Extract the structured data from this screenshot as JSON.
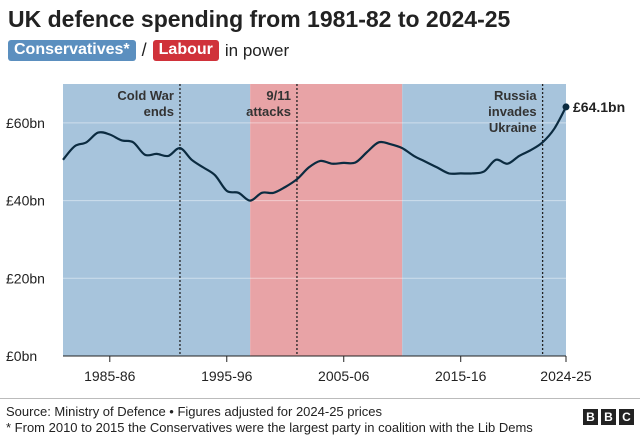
{
  "header": {
    "title": "UK defence spending from 1981-82 to 2024-25",
    "legend": {
      "conservatives_label": "Conservatives*",
      "separator": "/",
      "labour_label": "Labour",
      "suffix": "in power"
    }
  },
  "colors": {
    "conservative": "#5b8fbf",
    "conservative_shade": "#a7c4dc",
    "labour": "#d0323a",
    "labour_shade": "#e8a3a6",
    "line": "#0b2b40"
  },
  "chart_data": {
    "type": "line",
    "title": "UK defence spending from 1981-82 to 2024-25",
    "xlabel": "",
    "ylabel": "",
    "xlim": [
      1981,
      2024
    ],
    "ylim": [
      0,
      70
    ],
    "y_ticks": [
      0,
      20,
      40,
      60
    ],
    "y_tick_labels": [
      "£0bn",
      "£20bn",
      "£40bn",
      "£60bn"
    ],
    "x_ticks": [
      1985,
      1995,
      2005,
      2015,
      2024
    ],
    "x_tick_labels": [
      "1985-86",
      "1995-96",
      "2005-06",
      "2015-16",
      "2024-25"
    ],
    "grid": true,
    "periods": [
      {
        "party": "conservative",
        "start": 1981,
        "end": 1997
      },
      {
        "party": "labour",
        "start": 1997,
        "end": 2010
      },
      {
        "party": "conservative",
        "start": 2010,
        "end": 2024
      }
    ],
    "annotations": [
      {
        "x": 1991,
        "lines": [
          "Cold War",
          "ends"
        ],
        "align": "right"
      },
      {
        "x": 2001,
        "lines": [
          "9/11",
          "attacks"
        ],
        "align": "right"
      },
      {
        "x": 2022,
        "lines": [
          "Russia",
          "invades",
          "Ukraine"
        ],
        "align": "right"
      }
    ],
    "end_label": "£64.1bn",
    "series": [
      {
        "x": [
          1981,
          1982,
          1983,
          1984,
          1985,
          1986,
          1987,
          1988,
          1989,
          1990,
          1991,
          1992,
          1993,
          1994,
          1995,
          1996,
          1997,
          1998,
          1999,
          2000,
          2001,
          2002,
          2003,
          2004,
          2005,
          2006,
          2007,
          2008,
          2009,
          2010,
          2011,
          2012,
          2013,
          2014,
          2015,
          2016,
          2017,
          2018,
          2019,
          2020,
          2021,
          2022,
          2023,
          2024
        ],
        "values": [
          50.5,
          54.0,
          55.0,
          57.5,
          57.0,
          55.5,
          55.0,
          51.8,
          52.0,
          51.5,
          53.5,
          50.5,
          48.5,
          46.5,
          42.5,
          42.0,
          40.0,
          42.0,
          42.0,
          43.5,
          45.5,
          48.5,
          50.2,
          49.5,
          49.7,
          49.8,
          52.5,
          55.0,
          54.5,
          53.5,
          51.5,
          50.0,
          48.5,
          47.0,
          47.0,
          47.0,
          47.5,
          50.5,
          49.5,
          51.5,
          53.0,
          55.0,
          58.5,
          64.1
        ]
      }
    ]
  },
  "footer": {
    "source": "Source: Ministry of Defence • Figures adjusted for 2024-25 prices",
    "footnote": "* From 2010 to 2015 the Conservatives were the largest party in coalition with the Lib Dems",
    "logo": [
      "B",
      "B",
      "C"
    ]
  }
}
